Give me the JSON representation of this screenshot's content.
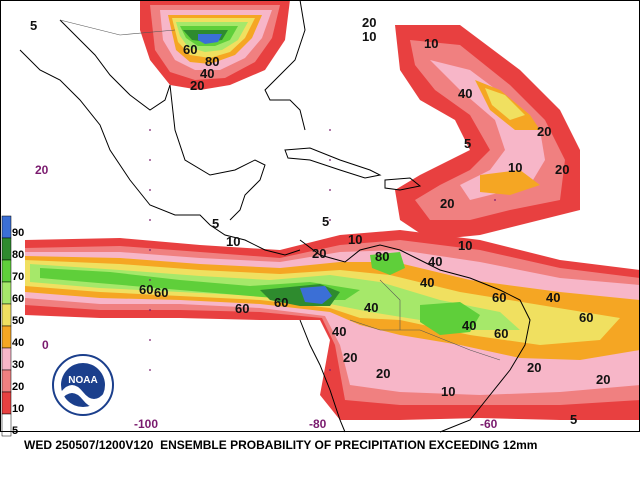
{
  "caption": "WED 250507/1200V120  ENSEMBLE PROBABILITY OF PRECIPITATION EXCEEDING 12mm",
  "legend": {
    "labels": [
      "90",
      "80",
      "70",
      "60",
      "50",
      "40",
      "30",
      "20",
      "10",
      "5"
    ],
    "colors": [
      "#3b6fd6",
      "#2e8b2e",
      "#5fcf3a",
      "#a6e86a",
      "#f0e060",
      "#f5a623",
      "#f7b6c8",
      "#f08080",
      "#e84040",
      "#ffffff"
    ]
  },
  "grid_labels": {
    "lat_20": "20",
    "lat_0": "0",
    "lon_m100": "-100",
    "lon_m80": "-80",
    "lon_m60": "-60"
  },
  "logo": {
    "text": "NOAA"
  },
  "contour_labels": [
    {
      "text": "5",
      "name": "cl-5-a"
    },
    {
      "text": "20",
      "name": "cl-20-a"
    },
    {
      "text": "10",
      "name": "cl-10-a"
    },
    {
      "text": "60",
      "name": "cl-60-a"
    },
    {
      "text": "80",
      "name": "cl-80-a"
    },
    {
      "text": "40",
      "name": "cl-40-a"
    },
    {
      "text": "20",
      "name": "cl-20-b"
    },
    {
      "text": "5",
      "name": "cl-5-b"
    },
    {
      "text": "10",
      "name": "cl-10-b"
    },
    {
      "text": "40",
      "name": "cl-40-b"
    },
    {
      "text": "20",
      "name": "cl-20-c"
    },
    {
      "text": "10",
      "name": "cl-10-c"
    },
    {
      "text": "20",
      "name": "cl-20-d"
    },
    {
      "text": "60",
      "name": "cl-60-b"
    },
    {
      "text": "60",
      "name": "cl-60-c"
    },
    {
      "text": "60",
      "name": "cl-60-d"
    },
    {
      "text": "60",
      "name": "cl-60-e"
    },
    {
      "text": "80",
      "name": "cl-80-b"
    },
    {
      "text": "40",
      "name": "cl-40-c"
    },
    {
      "text": "40",
      "name": "cl-40-d"
    },
    {
      "text": "60",
      "name": "cl-60-f"
    },
    {
      "text": "40",
      "name": "cl-40-e"
    },
    {
      "text": "60",
      "name": "cl-60-g"
    },
    {
      "text": "20",
      "name": "cl-20-e"
    },
    {
      "text": "40",
      "name": "cl-40-f"
    },
    {
      "text": "20",
      "name": "cl-20-f"
    },
    {
      "text": "10",
      "name": "cl-10-d"
    },
    {
      "text": "20",
      "name": "cl-20-g"
    },
    {
      "text": "60",
      "name": "cl-60-h"
    },
    {
      "text": "40",
      "name": "cl-40-g"
    },
    {
      "text": "20",
      "name": "cl-20-h"
    },
    {
      "text": "10",
      "name": "cl-10-e"
    },
    {
      "text": "10",
      "name": "cl-10-f"
    },
    {
      "text": "5",
      "name": "cl-5-c"
    },
    {
      "text": "5",
      "name": "cl-5-d"
    },
    {
      "text": "20",
      "name": "cl-20-i"
    },
    {
      "text": "40",
      "name": "cl-40-h"
    },
    {
      "text": "20",
      "name": "cl-20-j"
    },
    {
      "text": "10",
      "name": "cl-10-g"
    },
    {
      "text": "5",
      "name": "cl-5-e"
    }
  ]
}
